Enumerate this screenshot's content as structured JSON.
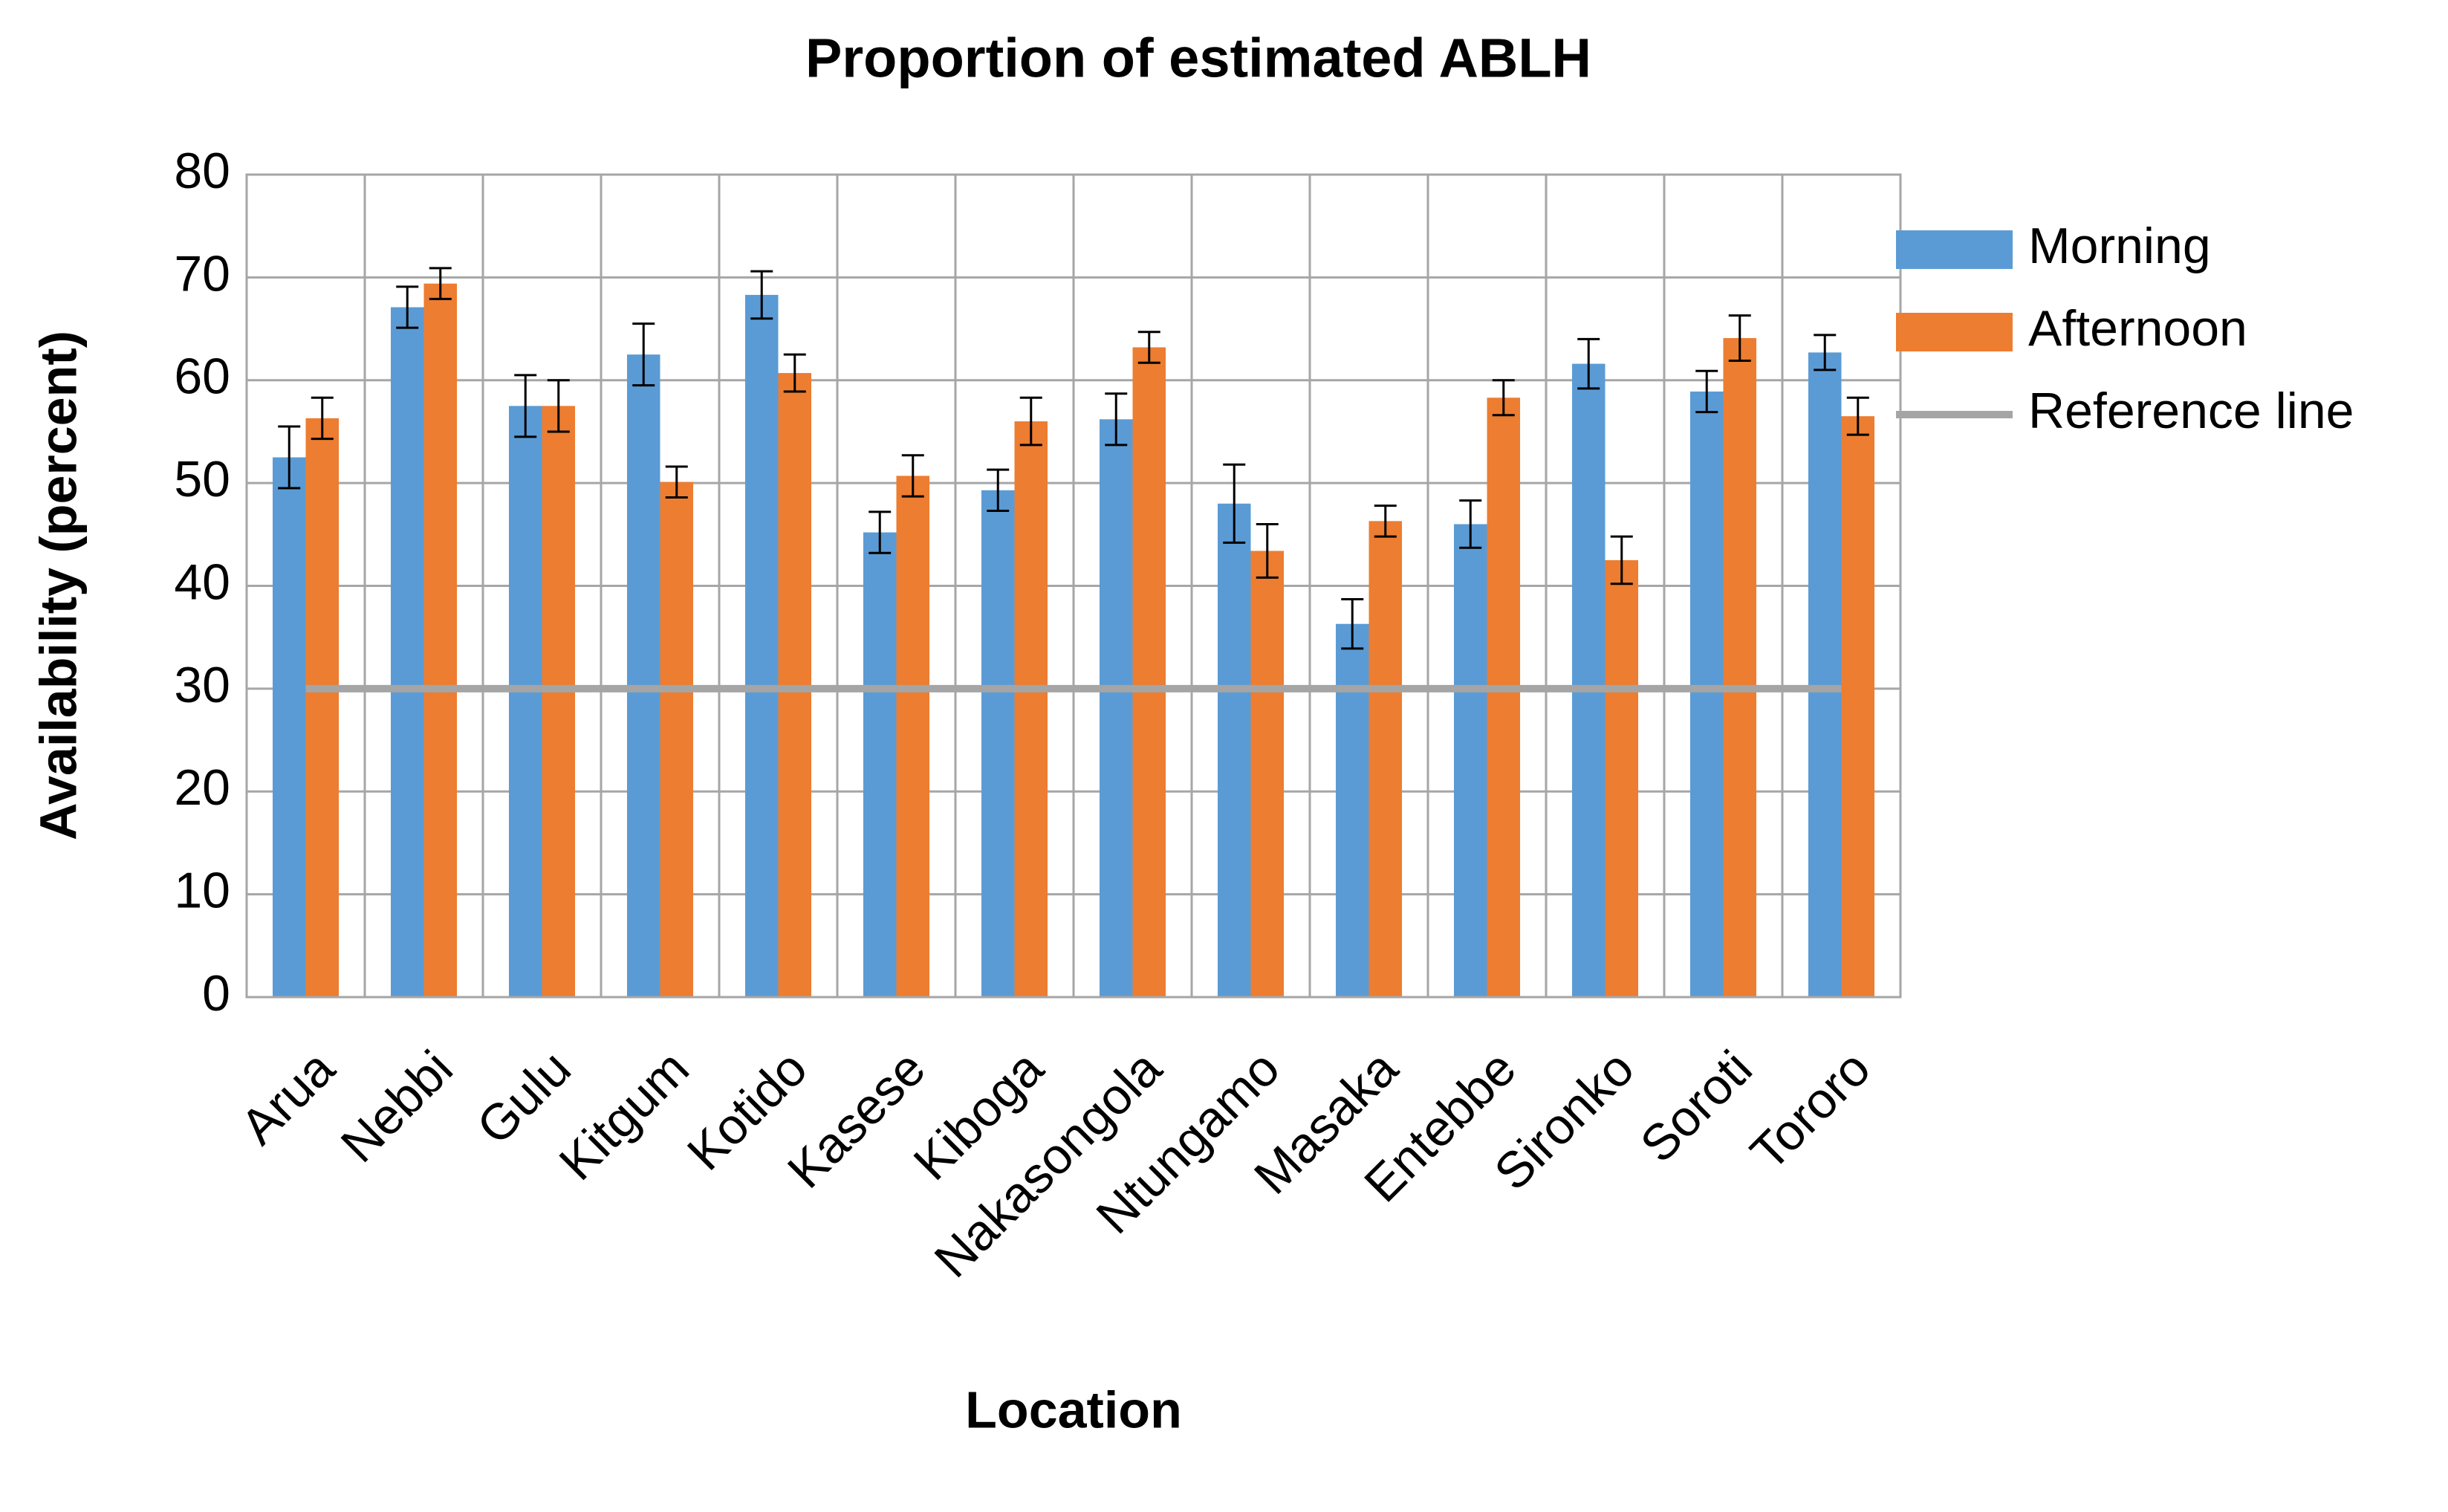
{
  "chart_data": {
    "type": "bar",
    "title": "Proportion of estimated ABLH",
    "xlabel": "Location",
    "ylabel": "Availability (percent)",
    "categories": [
      "Arua",
      "Nebbi",
      "Gulu",
      "Kitgum",
      "Kotido",
      "Kasese",
      "Kiboga",
      "Nakasongola",
      "Ntungamo",
      "Masaka",
      "Entebbe",
      "Sironko",
      "Soroti",
      "Tororo"
    ],
    "series": [
      {
        "name": "Morning",
        "color": "#5b9bd5",
        "values": [
          52.5,
          67.1,
          57.5,
          62.5,
          68.3,
          45.2,
          49.3,
          56.2,
          48,
          36.3,
          46,
          61.6,
          58.9,
          62.7
        ],
        "errors": [
          3,
          2,
          3,
          3,
          2.3,
          2,
          2,
          2.5,
          3.8,
          2.4,
          2.3,
          2.4,
          2,
          1.7
        ]
      },
      {
        "name": "Afternoon",
        "color": "#ed7d31",
        "values": [
          56.3,
          69.4,
          57.5,
          50.1,
          60.7,
          50.7,
          56,
          63.2,
          43.4,
          46.3,
          58.3,
          42.5,
          64.1,
          56.5
        ],
        "errors": [
          2,
          1.5,
          2.5,
          1.5,
          1.8,
          2,
          2.3,
          1.5,
          2.6,
          1.5,
          1.7,
          2.3,
          2.2,
          1.8
        ]
      },
      {
        "name": "Reference line",
        "color": "#a5a5a5",
        "kind": "line",
        "values": [
          30,
          30,
          30,
          30,
          30,
          30,
          30,
          30,
          30,
          30,
          30,
          30,
          30,
          30
        ]
      }
    ],
    "ylim": [
      0,
      80
    ],
    "yticks": [
      0,
      10,
      20,
      30,
      40,
      50,
      60,
      70,
      80
    ],
    "grid": true,
    "legend": "right"
  }
}
